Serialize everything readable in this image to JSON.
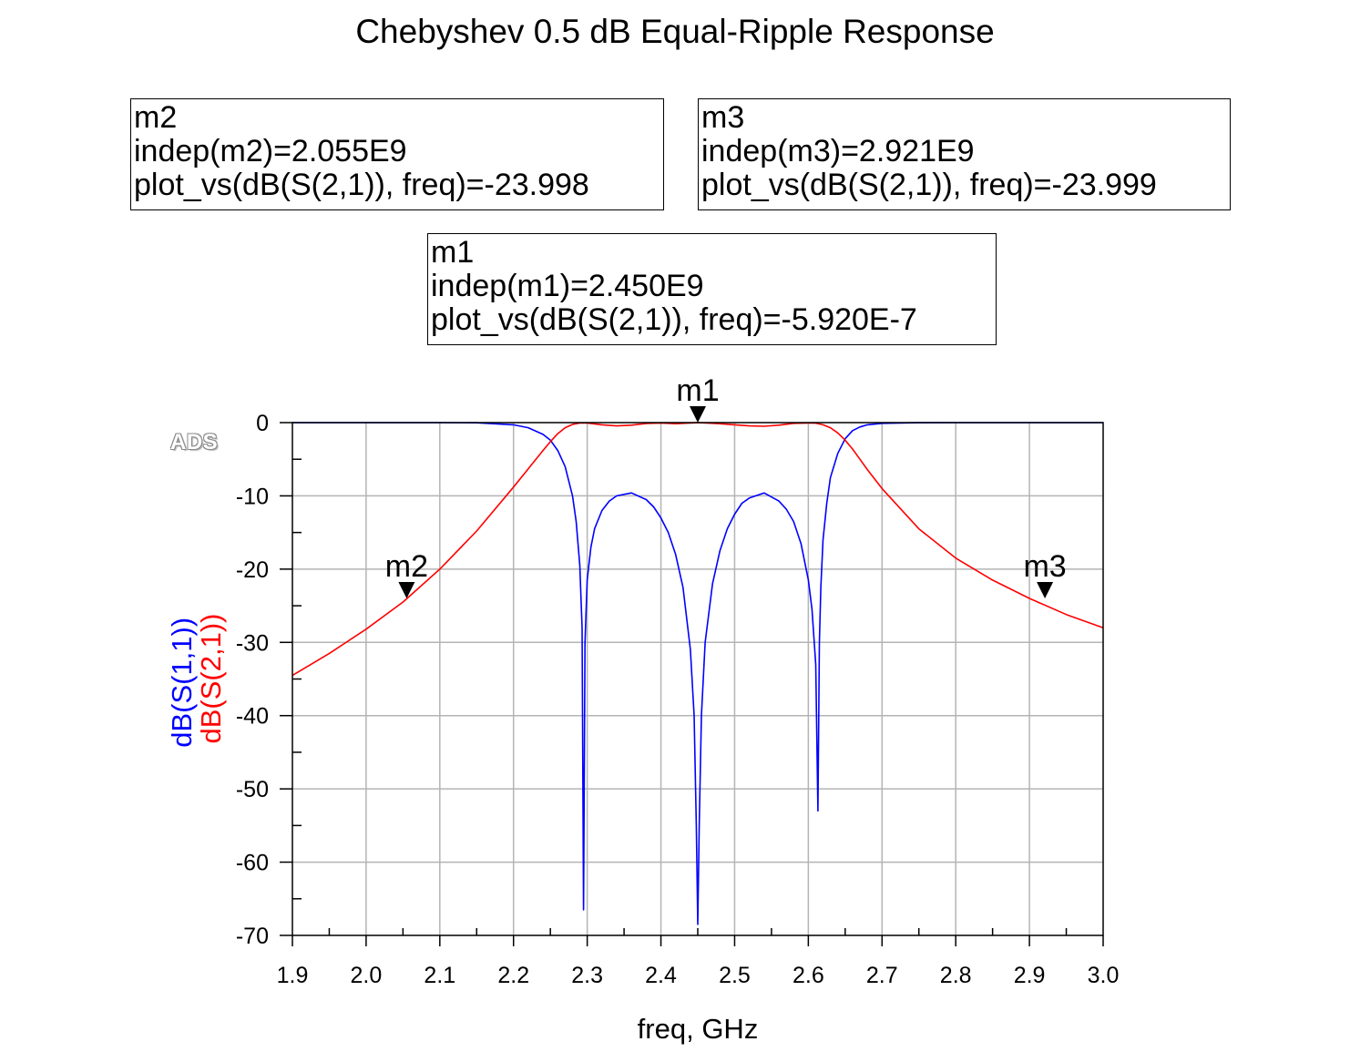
{
  "chart_data": {
    "type": "line",
    "title": "Chebyshev 0.5 dB Equal-Ripple Response",
    "xlabel": "freq, GHz",
    "ylabel_parts": [
      "dB(S(1,1))",
      "dB(S(2,1))"
    ],
    "xlim": [
      1.9,
      3.0
    ],
    "ylim": [
      -70,
      0
    ],
    "x_ticks": [
      "1.9",
      "2.0",
      "2.1",
      "2.2",
      "2.3",
      "2.4",
      "2.5",
      "2.6",
      "2.7",
      "2.8",
      "2.9",
      "3.0"
    ],
    "y_ticks": [
      "0",
      "-10",
      "-20",
      "-30",
      "-40",
      "-50",
      "-60",
      "-70"
    ],
    "grid": true,
    "logo": "ADS",
    "series": [
      {
        "name": "dB(S(1,1))",
        "color": "#0000ff",
        "x": [
          1.9,
          2.0,
          2.1,
          2.15,
          2.2,
          2.22,
          2.24,
          2.25,
          2.26,
          2.27,
          2.28,
          2.285,
          2.29,
          2.293,
          2.295,
          2.297,
          2.3,
          2.305,
          2.31,
          2.32,
          2.33,
          2.34,
          2.36,
          2.38,
          2.39,
          2.4,
          2.41,
          2.42,
          2.43,
          2.44,
          2.445,
          2.448,
          2.45,
          2.452,
          2.455,
          2.46,
          2.47,
          2.48,
          2.49,
          2.5,
          2.51,
          2.52,
          2.54,
          2.56,
          2.57,
          2.58,
          2.59,
          2.6,
          2.605,
          2.61,
          2.613,
          2.615,
          2.617,
          2.62,
          2.625,
          2.63,
          2.64,
          2.65,
          2.66,
          2.67,
          2.68,
          2.7,
          2.75,
          2.8,
          2.9,
          3.0
        ],
        "values": [
          0,
          0,
          0,
          -0.02,
          -0.3,
          -0.7,
          -1.6,
          -2.4,
          -3.8,
          -6.0,
          -10.0,
          -13.5,
          -19.5,
          -28.0,
          -66.5,
          -30.0,
          -21.5,
          -17.0,
          -14.5,
          -12.0,
          -10.7,
          -10.0,
          -9.6,
          -10.5,
          -11.5,
          -13.0,
          -15.0,
          -18.0,
          -22.5,
          -31.0,
          -40.0,
          -55.0,
          -68.5,
          -55.0,
          -40.0,
          -30.0,
          -22.0,
          -17.5,
          -14.5,
          -12.5,
          -11.0,
          -10.3,
          -9.6,
          -10.7,
          -11.8,
          -13.5,
          -16.5,
          -21.5,
          -25.5,
          -33.0,
          -53.0,
          -30.0,
          -22.5,
          -16.0,
          -11.0,
          -7.5,
          -4.2,
          -2.2,
          -1.1,
          -0.6,
          -0.3,
          -0.1,
          -0.01,
          0,
          0,
          0
        ]
      },
      {
        "name": "dB(S(2,1))",
        "color": "#ff0000",
        "x": [
          1.9,
          1.95,
          2.0,
          2.05,
          2.1,
          2.15,
          2.2,
          2.22,
          2.24,
          2.25,
          2.26,
          2.27,
          2.28,
          2.29,
          2.3,
          2.32,
          2.34,
          2.36,
          2.38,
          2.4,
          2.42,
          2.45,
          2.48,
          2.5,
          2.52,
          2.54,
          2.56,
          2.58,
          2.6,
          2.61,
          2.62,
          2.63,
          2.64,
          2.65,
          2.66,
          2.67,
          2.68,
          2.7,
          2.75,
          2.8,
          2.85,
          2.9,
          2.95,
          3.0
        ],
        "values": [
          -34.5,
          -31.5,
          -28.2,
          -24.5,
          -20.0,
          -14.8,
          -8.8,
          -6.3,
          -3.8,
          -2.6,
          -1.5,
          -0.7,
          -0.25,
          -0.05,
          -0.05,
          -0.3,
          -0.45,
          -0.35,
          -0.12,
          -0.05,
          -0.15,
          0,
          -0.15,
          -0.3,
          -0.45,
          -0.5,
          -0.35,
          -0.1,
          -0.05,
          -0.08,
          -0.3,
          -0.7,
          -1.4,
          -2.4,
          -3.6,
          -5.0,
          -6.4,
          -9.0,
          -14.5,
          -18.5,
          -21.5,
          -24.0,
          -26.2,
          -28.0
        ]
      }
    ],
    "markers": [
      {
        "name": "m1",
        "series": "dB(S(2,1))",
        "x": 2.45,
        "y": 0,
        "lines": [
          "m1",
          "indep(m1)=2.450E9",
          "plot_vs(dB(S(2,1)), freq)=-5.920E-7"
        ]
      },
      {
        "name": "m2",
        "series": "dB(S(2,1))",
        "x": 2.055,
        "y": -23.998,
        "lines": [
          "m2",
          "indep(m2)=2.055E9",
          "plot_vs(dB(S(2,1)), freq)=-23.998"
        ]
      },
      {
        "name": "m3",
        "series": "dB(S(2,1))",
        "x": 2.921,
        "y": -23.999,
        "lines": [
          "m3",
          "indep(m3)=2.921E9",
          "plot_vs(dB(S(2,1)), freq)=-23.999"
        ]
      }
    ]
  }
}
